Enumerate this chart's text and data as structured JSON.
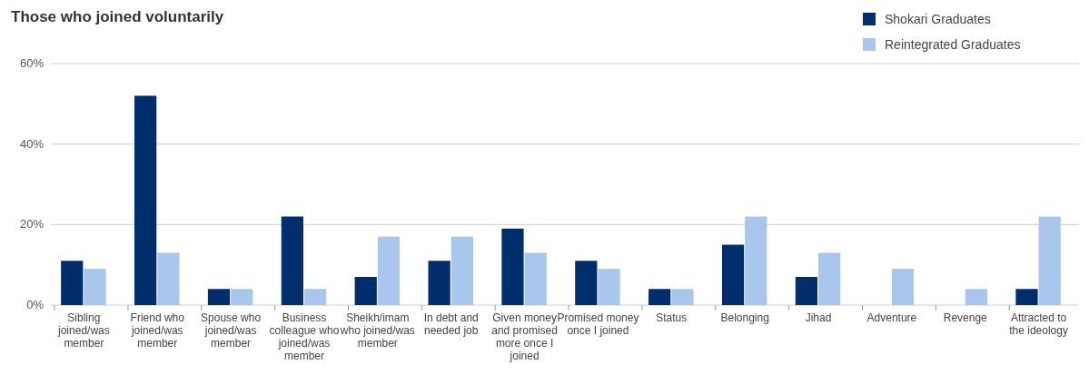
{
  "chart_data": {
    "type": "bar",
    "title": "Those who joined voluntarily",
    "categories": [
      "Sibling joined/was member",
      "Friend who joined/was member",
      "Spouse who joined/was member",
      "Business colleague who joined/was member",
      "Sheikh/imam who joined/was member",
      "In debt and needed job",
      "Given money and promised more once I joined",
      "Promised money once I joined",
      "Status",
      "Belonging",
      "Jihad",
      "Adventure",
      "Revenge",
      "Attracted to the ideology"
    ],
    "series": [
      {
        "name": "Shokari Graduates",
        "color": "#002d6b",
        "values": [
          11,
          52,
          4,
          22,
          7,
          11,
          19,
          11,
          4,
          15,
          7,
          0,
          0,
          4
        ]
      },
      {
        "name": "Reintegrated Graduates",
        "color": "#a9c7ec",
        "values": [
          9,
          13,
          4,
          4,
          17,
          17,
          13,
          9,
          4,
          22,
          13,
          9,
          4,
          22
        ]
      }
    ],
    "ylim": [
      0,
      60
    ],
    "yticks": [
      {
        "value": 0,
        "label": "0%"
      },
      {
        "value": 20,
        "label": "20%"
      },
      {
        "value": 40,
        "label": "40%"
      },
      {
        "value": 60,
        "label": "60%"
      }
    ],
    "grid": "y",
    "legend": "top right"
  }
}
